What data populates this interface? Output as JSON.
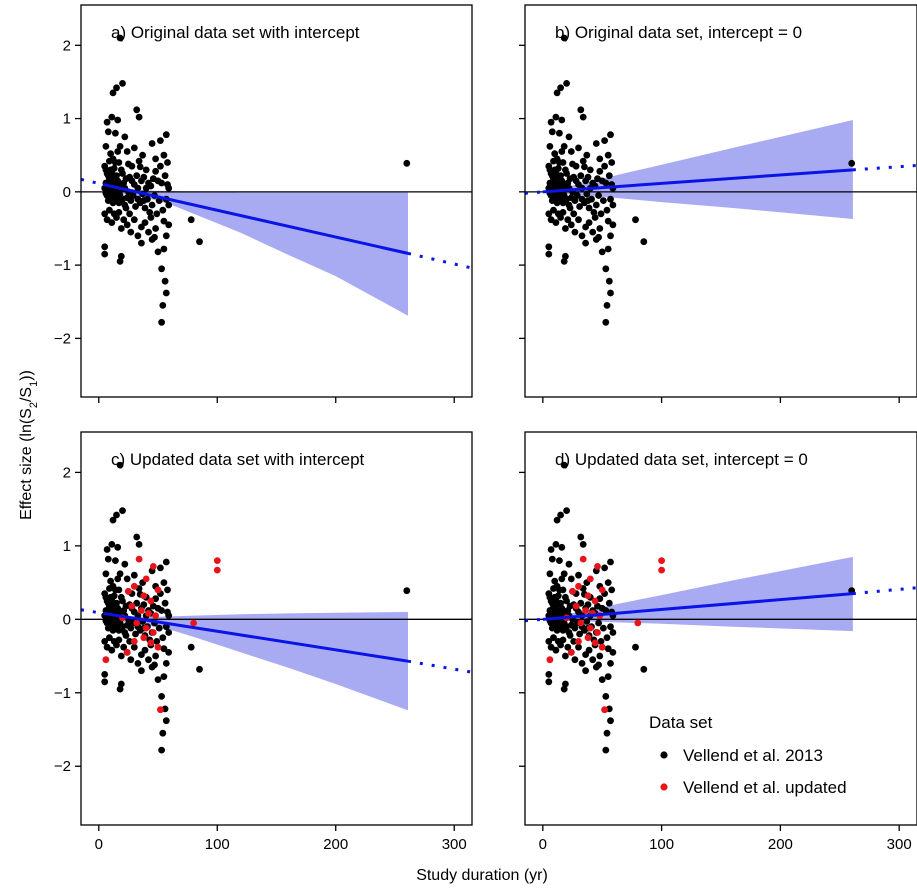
{
  "figure": {
    "xlabel": "Study duration (yr)",
    "ylabel": "Effect size (ln(S2/S1))",
    "ylabel_parts": {
      "pre": "Effect size (ln(S",
      "sub1": "2",
      "mid": "/S",
      "sub2": "1",
      "post": "))"
    }
  },
  "legend": {
    "title": "Data set",
    "entries": [
      {
        "label": "Vellend et al. 2013",
        "color": "#000000"
      },
      {
        "label": "Vellend et al. updated",
        "color": "#e8141b"
      }
    ]
  },
  "colors": {
    "original": "#000000",
    "updated": "#e8141b",
    "fit_line": "#0a14e6",
    "ci_band": "#a9abf2",
    "zero_line": "#000000"
  },
  "chart_data": [
    {
      "type": "scatter",
      "panel": "a",
      "title": "a) Original data set with intercept",
      "xlim": [
        -15,
        315
      ],
      "ylim": [
        -2.8,
        2.55
      ],
      "xticks": [
        "0",
        "100",
        "200",
        "300"
      ],
      "yticks": [
        "2",
        "1",
        "0",
        "−1",
        "−2"
      ],
      "xtick_labels_shown": false,
      "ytick_labels_shown": true,
      "fit": {
        "x_solid": [
          4,
          261
        ],
        "y_solid": [
          0.1,
          -0.84
        ],
        "x_dotted_left": [
          -15,
          4
        ],
        "y_dotted_left": [
          0.17,
          0.1
        ],
        "x_dotted_right": [
          261,
          315
        ],
        "y_dotted_right": [
          -0.84,
          -1.04
        ]
      },
      "ci_band": {
        "x": [
          4,
          20,
          40,
          60,
          80,
          120,
          160,
          200,
          261
        ],
        "upper": [
          0.16,
          0.05,
          0.02,
          0.01,
          0.0,
          -0.01,
          -0.01,
          -0.01,
          -0.01
        ],
        "lower": [
          0.05,
          -0.03,
          -0.08,
          -0.17,
          -0.3,
          -0.56,
          -0.86,
          -1.15,
          -1.69
        ]
      },
      "series": [
        {
          "name": "Vellend et al. 2013",
          "color": "#000000",
          "points": "original"
        }
      ]
    },
    {
      "type": "scatter",
      "panel": "b",
      "title": "b) Original data set, intercept = 0",
      "xlim": [
        -15,
        315
      ],
      "ylim": [
        -2.8,
        2.55
      ],
      "xticks": [
        "0",
        "100",
        "200",
        "300"
      ],
      "yticks": [
        "2",
        "1",
        "0",
        "−1",
        "−2"
      ],
      "xtick_labels_shown": false,
      "ytick_labels_shown": false,
      "fit": {
        "x_solid": [
          0,
          261
        ],
        "y_solid": [
          0.0,
          0.3
        ],
        "x_dotted_left": [
          -15,
          0
        ],
        "y_dotted_left": [
          -0.02,
          0.0
        ],
        "x_dotted_right": [
          261,
          315
        ],
        "y_dotted_right": [
          0.3,
          0.36
        ]
      },
      "ci_band": {
        "x": [
          0,
          20,
          40,
          60,
          100,
          160,
          261
        ],
        "upper": [
          0.0,
          0.07,
          0.14,
          0.22,
          0.37,
          0.6,
          0.98
        ],
        "lower": [
          0.0,
          -0.03,
          -0.06,
          -0.08,
          -0.14,
          -0.22,
          -0.37
        ]
      },
      "series": [
        {
          "name": "Vellend et al. 2013",
          "color": "#000000",
          "points": "original"
        }
      ]
    },
    {
      "type": "scatter",
      "panel": "c",
      "title": "c) Updated data set with intercept",
      "xlim": [
        -15,
        315
      ],
      "ylim": [
        -2.8,
        2.55
      ],
      "xticks": [
        "0",
        "100",
        "200",
        "300"
      ],
      "yticks": [
        "2",
        "1",
        "0",
        "−1",
        "−2"
      ],
      "xtick_labels_shown": true,
      "ytick_labels_shown": true,
      "fit": {
        "x_solid": [
          4,
          261
        ],
        "y_solid": [
          0.08,
          -0.57
        ],
        "x_dotted_left": [
          -15,
          4
        ],
        "y_dotted_left": [
          0.13,
          0.08
        ],
        "x_dotted_right": [
          261,
          315
        ],
        "y_dotted_right": [
          -0.57,
          -0.72
        ]
      },
      "ci_band": {
        "x": [
          4,
          20,
          40,
          60,
          80,
          120,
          160,
          200,
          261
        ],
        "upper": [
          0.14,
          0.05,
          0.03,
          0.04,
          0.05,
          0.07,
          0.08,
          0.09,
          0.1
        ],
        "lower": [
          0.03,
          -0.03,
          -0.08,
          -0.14,
          -0.24,
          -0.45,
          -0.66,
          -0.88,
          -1.24
        ]
      },
      "series": [
        {
          "name": "Vellend et al. 2013",
          "color": "#000000",
          "points": "original"
        },
        {
          "name": "Vellend et al. updated",
          "color": "#e8141b",
          "points": "updated"
        }
      ]
    },
    {
      "type": "scatter",
      "panel": "d",
      "title": "d) Updated data set, intercept = 0",
      "xlim": [
        -15,
        315
      ],
      "ylim": [
        -2.8,
        2.55
      ],
      "xticks": [
        "0",
        "100",
        "200",
        "300"
      ],
      "yticks": [
        "2",
        "1",
        "0",
        "−1",
        "−2"
      ],
      "xtick_labels_shown": true,
      "ytick_labels_shown": false,
      "fit": {
        "x_solid": [
          0,
          261
        ],
        "y_solid": [
          0.0,
          0.35
        ],
        "x_dotted_left": [
          -15,
          0
        ],
        "y_dotted_left": [
          -0.02,
          0.0
        ],
        "x_dotted_right": [
          261,
          315
        ],
        "y_dotted_right": [
          0.35,
          0.43
        ]
      },
      "ci_band": {
        "x": [
          0,
          20,
          40,
          60,
          100,
          160,
          261
        ],
        "upper": [
          0.0,
          0.07,
          0.13,
          0.2,
          0.33,
          0.53,
          0.85
        ],
        "lower": [
          0.0,
          -0.01,
          -0.03,
          -0.04,
          -0.06,
          -0.1,
          -0.16
        ]
      },
      "series": [
        {
          "name": "Vellend et al. 2013",
          "color": "#000000",
          "points": "original"
        },
        {
          "name": "Vellend et al. updated",
          "color": "#e8141b",
          "points": "updated"
        }
      ]
    }
  ],
  "points": {
    "original": [
      [
        18,
        2.1
      ],
      [
        20,
        1.48
      ],
      [
        15,
        1.42
      ],
      [
        12,
        1.35
      ],
      [
        32,
        1.12
      ],
      [
        11,
        1.02
      ],
      [
        16,
        0.98
      ],
      [
        7,
        0.95
      ],
      [
        34,
        1.02
      ],
      [
        8,
        0.82
      ],
      [
        14,
        0.8
      ],
      [
        22,
        0.75
      ],
      [
        57,
        0.78
      ],
      [
        52,
        0.7
      ],
      [
        45,
        0.66
      ],
      [
        30,
        0.6
      ],
      [
        6,
        0.62
      ],
      [
        24,
        0.55
      ],
      [
        37,
        0.5
      ],
      [
        55,
        0.5
      ],
      [
        10,
        0.52
      ],
      [
        9,
        0.42
      ],
      [
        12,
        0.45
      ],
      [
        17,
        0.4
      ],
      [
        25,
        0.38
      ],
      [
        35,
        0.34
      ],
      [
        40,
        0.3
      ],
      [
        48,
        0.28
      ],
      [
        5,
        0.35
      ],
      [
        6,
        0.3
      ],
      [
        7,
        0.25
      ],
      [
        8,
        0.22
      ],
      [
        9,
        0.18
      ],
      [
        10,
        0.15
      ],
      [
        11,
        0.12
      ],
      [
        12,
        0.2
      ],
      [
        13,
        0.1
      ],
      [
        14,
        0.05
      ],
      [
        15,
        0.22
      ],
      [
        16,
        0.15
      ],
      [
        18,
        0.08
      ],
      [
        19,
        0.3
      ],
      [
        20,
        0.25
      ],
      [
        21,
        0.12
      ],
      [
        22,
        0.05
      ],
      [
        23,
        0.18
      ],
      [
        26,
        0.2
      ],
      [
        28,
        0.15
      ],
      [
        30,
        0.1
      ],
      [
        32,
        0.22
      ],
      [
        33,
        0.05
      ],
      [
        36,
        0.15
      ],
      [
        38,
        0.2
      ],
      [
        42,
        0.12
      ],
      [
        44,
        0.08
      ],
      [
        46,
        0.18
      ],
      [
        50,
        0.15
      ],
      [
        53,
        0.12
      ],
      [
        56,
        0.22
      ],
      [
        58,
        0.1
      ],
      [
        59,
        0.05
      ],
      [
        5,
        0.05
      ],
      [
        6,
        -0.02
      ],
      [
        7,
        -0.05
      ],
      [
        8,
        0.02
      ],
      [
        9,
        -0.08
      ],
      [
        10,
        0.0
      ],
      [
        11,
        -0.1
      ],
      [
        12,
        -0.05
      ],
      [
        13,
        0.02
      ],
      [
        14,
        -0.12
      ],
      [
        15,
        0.0
      ],
      [
        16,
        -0.08
      ],
      [
        17,
        -0.15
      ],
      [
        18,
        -0.05
      ],
      [
        19,
        0.03
      ],
      [
        20,
        -0.1
      ],
      [
        22,
        -0.18
      ],
      [
        24,
        -0.08
      ],
      [
        25,
        0.0
      ],
      [
        27,
        -0.12
      ],
      [
        29,
        -0.05
      ],
      [
        31,
        -0.2
      ],
      [
        33,
        -0.1
      ],
      [
        35,
        -0.15
      ],
      [
        37,
        -0.03
      ],
      [
        39,
        -0.22
      ],
      [
        41,
        -0.1
      ],
      [
        43,
        -0.28
      ],
      [
        45,
        -0.18
      ],
      [
        47,
        -0.05
      ],
      [
        49,
        -0.3
      ],
      [
        51,
        -0.12
      ],
      [
        54,
        -0.25
      ],
      [
        57,
        -0.1
      ],
      [
        59,
        -0.18
      ],
      [
        5,
        -0.3
      ],
      [
        7,
        -0.38
      ],
      [
        9,
        -0.25
      ],
      [
        11,
        -0.42
      ],
      [
        13,
        -0.3
      ],
      [
        15,
        -0.35
      ],
      [
        17,
        -0.28
      ],
      [
        19,
        -0.5
      ],
      [
        21,
        -0.38
      ],
      [
        24,
        -0.45
      ],
      [
        27,
        -0.55
      ],
      [
        30,
        -0.38
      ],
      [
        33,
        -0.6
      ],
      [
        36,
        -0.48
      ],
      [
        39,
        -0.42
      ],
      [
        42,
        -0.55
      ],
      [
        45,
        -0.65
      ],
      [
        48,
        -0.5
      ],
      [
        50,
        -0.82
      ],
      [
        55,
        -0.78
      ],
      [
        57,
        -0.6
      ],
      [
        59,
        -0.45
      ],
      [
        5,
        -0.85
      ],
      [
        5,
        -0.75
      ],
      [
        18,
        -0.95
      ],
      [
        19,
        -0.88
      ],
      [
        36,
        -0.7
      ],
      [
        47,
        -0.62
      ],
      [
        53,
        -1.05
      ],
      [
        56,
        -1.22
      ],
      [
        57,
        -1.38
      ],
      [
        54,
        -1.55
      ],
      [
        53,
        -1.78
      ],
      [
        85,
        -0.68
      ],
      [
        78,
        -0.38
      ],
      [
        260,
        0.39
      ],
      [
        6,
        0.05
      ],
      [
        6,
        0.12
      ],
      [
        7,
        0.1
      ],
      [
        8,
        -0.12
      ],
      [
        9,
        0.06
      ],
      [
        10,
        0.3
      ],
      [
        11,
        0.28
      ],
      [
        12,
        -0.15
      ],
      [
        13,
        0.32
      ],
      [
        14,
        0.4
      ],
      [
        16,
        0.55
      ],
      [
        18,
        0.62
      ],
      [
        20,
        0.05
      ],
      [
        23,
        -0.22
      ],
      [
        26,
        -0.3
      ],
      [
        28,
        0.35
      ],
      [
        34,
        0.42
      ],
      [
        38,
        -0.12
      ],
      [
        40,
        0.05
      ],
      [
        44,
        -0.35
      ],
      [
        48,
        0.45
      ],
      [
        52,
        0.35
      ],
      [
        55,
        -0.4
      ],
      [
        58,
        0.4
      ]
    ],
    "updated": [
      [
        34,
        0.82
      ],
      [
        46,
        0.72
      ],
      [
        100,
        0.8
      ],
      [
        100,
        0.67
      ],
      [
        40,
        0.55
      ],
      [
        30,
        0.45
      ],
      [
        50,
        0.4
      ],
      [
        25,
        0.38
      ],
      [
        38,
        0.32
      ],
      [
        44,
        0.25
      ],
      [
        28,
        0.18
      ],
      [
        36,
        0.12
      ],
      [
        42,
        0.08
      ],
      [
        48,
        0.05
      ],
      [
        20,
        0.02
      ],
      [
        32,
        -0.05
      ],
      [
        40,
        -0.12
      ],
      [
        46,
        -0.18
      ],
      [
        38,
        -0.25
      ],
      [
        30,
        -0.3
      ],
      [
        44,
        -0.32
      ],
      [
        50,
        -0.38
      ],
      [
        52,
        -1.23
      ],
      [
        80,
        -0.05
      ],
      [
        6,
        -0.55
      ],
      [
        24,
        -0.45
      ]
    ]
  }
}
